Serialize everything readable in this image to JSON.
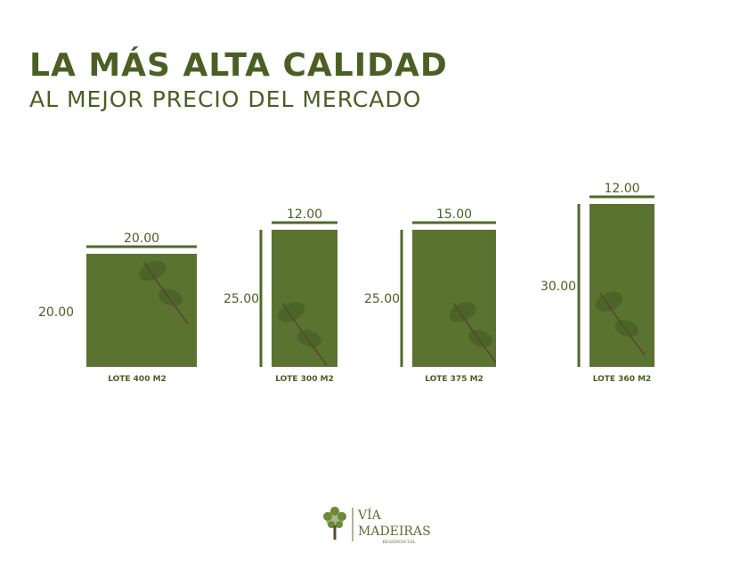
{
  "header": {
    "title": "LA MÁS ALTA CALIDAD",
    "subtitle": "AL MEJOR PRECIO DEL MERCADO"
  },
  "lots": [
    {
      "width": "20.00",
      "depth": "20.00",
      "label": "LOTE 400 M2"
    },
    {
      "width": "12.00",
      "depth": "25.00",
      "label": "LOTE 300 M2"
    },
    {
      "width": "15.00",
      "depth": "25.00",
      "label": "LOTE 375 M2"
    },
    {
      "width": "12.00",
      "depth": "30.00",
      "label": "LOTE 360 M2"
    }
  ],
  "logo": {
    "line1": "VÍA",
    "line2": "MADEIRAS",
    "line3": "RESIDENCIAL"
  }
}
